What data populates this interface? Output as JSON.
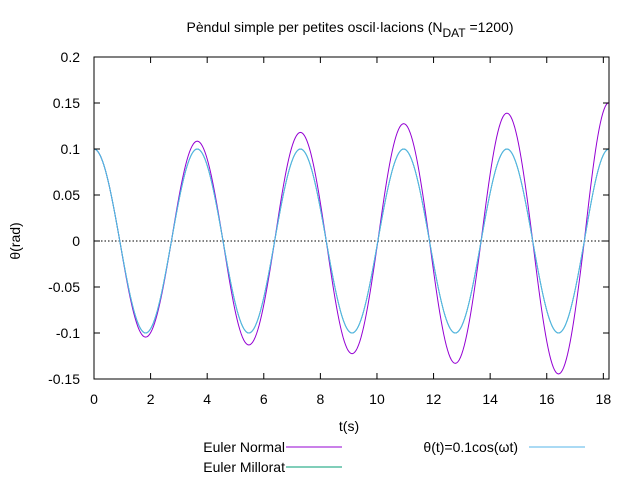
{
  "chart_data": {
    "type": "line",
    "title": "Pèndul simple per petites oscil·lacions (N",
    "title_sub": "DAT",
    "title_tail": " =1200)",
    "xlabel": "t(s)",
    "ylabel": "θ(rad)",
    "xlim": [
      0,
      18.2
    ],
    "ylim": [
      -0.15,
      0.2
    ],
    "grid": false,
    "zero_line": true,
    "legend_position": "bottom",
    "x_ticks": [
      0,
      2,
      4,
      6,
      8,
      10,
      12,
      14,
      16,
      18
    ],
    "x_tick_labels": [
      "0",
      "2",
      "4",
      "6",
      "8",
      "10",
      "12",
      "14",
      "16",
      "18"
    ],
    "y_ticks": [
      -0.15,
      -0.1,
      -0.05,
      0,
      0.05,
      0.1,
      0.15,
      0.2
    ],
    "y_tick_labels": [
      "-0.15",
      "-0.1",
      "-0.05",
      "0",
      "0.05",
      "0.1",
      "0.15",
      "0.2"
    ],
    "series": [
      {
        "name": "Euler Normal",
        "color": "#9400d3",
        "x": [
          0,
          0.912,
          1.824,
          2.736,
          3.648,
          4.56,
          5.472,
          6.384,
          7.296,
          8.208,
          9.12,
          10.032,
          10.944,
          11.856,
          12.768,
          13.68,
          14.592,
          15.504,
          16.416,
          17.328,
          18.2
        ],
        "y": [
          0.1,
          0,
          -0.1045,
          0,
          0.1085,
          0,
          -0.113,
          0,
          0.118,
          0,
          -0.1225,
          0,
          0.1275,
          0,
          -0.133,
          0,
          0.139,
          0,
          -0.1445,
          0,
          0.1505
        ]
      },
      {
        "name": "Euler Millorat",
        "color": "#009e73",
        "x": [
          0,
          0.912,
          1.824,
          2.736,
          3.648,
          4.56,
          5.472,
          6.384,
          7.296,
          8.208,
          9.12,
          10.032,
          10.944,
          11.856,
          12.768,
          13.68,
          14.592,
          15.504,
          16.416,
          17.328,
          18.2
        ],
        "y": [
          0.1,
          0,
          -0.1,
          0,
          0.1,
          0,
          -0.1,
          0,
          0.1,
          0,
          -0.1,
          0,
          0.1,
          0,
          -0.1,
          0,
          0.1,
          0,
          -0.1,
          0,
          0.1
        ]
      },
      {
        "name": "θ(t)=0.1cos(ωt)",
        "color": "#56b4e9",
        "x": [
          0,
          0.912,
          1.824,
          2.736,
          3.648,
          4.56,
          5.472,
          6.384,
          7.296,
          8.208,
          9.12,
          10.032,
          10.944,
          11.856,
          12.768,
          13.68,
          14.592,
          15.504,
          16.416,
          17.328,
          18.2
        ],
        "y": [
          0.1,
          0,
          -0.1,
          0,
          0.1,
          0,
          -0.1,
          0,
          0.1,
          0,
          -0.1,
          0,
          0.1,
          0,
          -0.1,
          0,
          0.1,
          0,
          -0.1,
          0,
          0.1
        ]
      }
    ]
  }
}
